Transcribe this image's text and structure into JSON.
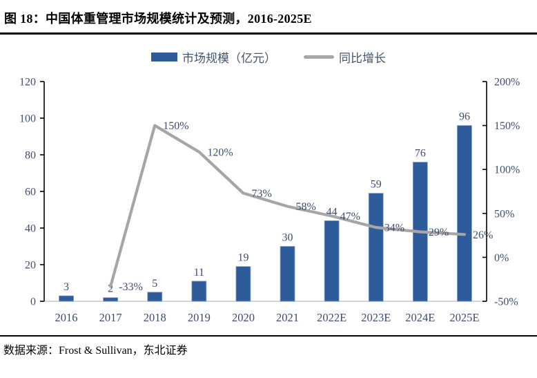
{
  "title": "图 18：中国体重管理市场规模统计及预测，2016-2025E",
  "legend": {
    "bar_label": "市场规模（亿元）",
    "line_label": "同比增长"
  },
  "colors": {
    "bar": "#2E5B9A",
    "bar_border": "#89A3CC",
    "line": "#A6A6A6",
    "label": "#3E4C6E",
    "axis": "#000000",
    "baseline": "#D6D6D6"
  },
  "chart_data": {
    "type": "bar+line combo",
    "categories": [
      "2016",
      "2017",
      "2018",
      "2019",
      "2020",
      "2021",
      "2022E",
      "2023E",
      "2024E",
      "2025E"
    ],
    "series": [
      {
        "name": "市场规模（亿元）",
        "type": "bar",
        "axis": "left",
        "values": [
          3,
          2,
          5,
          11,
          19,
          30,
          44,
          59,
          76,
          96
        ]
      },
      {
        "name": "同比增长",
        "type": "line",
        "axis": "right",
        "values": [
          null,
          -33,
          150,
          120,
          73,
          58,
          47,
          34,
          29,
          26
        ],
        "labels": [
          "",
          "-33%",
          "150%",
          "120%",
          "73%",
          "58%",
          "47%",
          "34%",
          "29%",
          "26%"
        ]
      }
    ],
    "left_axis": {
      "min": 0,
      "max": 120,
      "step": 20,
      "tick_labels": [
        "0",
        "20",
        "40",
        "60",
        "80",
        "100",
        "120"
      ]
    },
    "right_axis": {
      "min": -50,
      "max": 200,
      "step": 50,
      "tick_labels": [
        "-50%",
        "0%",
        "50%",
        "100%",
        "150%",
        "200%"
      ]
    },
    "grid": false,
    "legend_position": "top-center"
  },
  "footer": {
    "source": "数据来源：Frost & Sullivan，东北证券"
  }
}
